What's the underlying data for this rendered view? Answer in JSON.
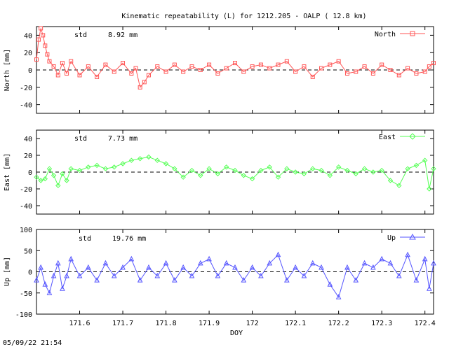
{
  "title": "Kinematic repeatability (L) for 1212.205 - OALP  ( 12.8 km)",
  "timestamp": "05/09/22 21:54",
  "colors": {
    "north": "#ff5555",
    "east": "#55ff55",
    "up": "#5555ff",
    "axis": "#000000"
  },
  "chart_data": [
    {
      "type": "line",
      "panel": "north",
      "ylabel": "North [mm]",
      "legend": "North",
      "legend_placement": "top-right",
      "std_label": "std",
      "std_value": "8.92 mm",
      "marker": "square",
      "ylim": [
        -50,
        50
      ],
      "yticks": [
        -40,
        -20,
        0,
        20,
        40
      ],
      "xlim": [
        171.5,
        172.42
      ],
      "grid": false,
      "zero_line": true,
      "series": [
        {
          "x": [
            171.5,
            171.505,
            171.51,
            171.515,
            171.52,
            171.525,
            171.53,
            171.54,
            171.55,
            171.56,
            171.57,
            171.58,
            171.6,
            171.62,
            171.64,
            171.66,
            171.68,
            171.7,
            171.72,
            171.73,
            171.74,
            171.75,
            171.76,
            171.78,
            171.8,
            171.82,
            171.84,
            171.86,
            171.88,
            171.9,
            171.92,
            171.94,
            171.96,
            171.98,
            172.0,
            172.02,
            172.04,
            172.06,
            172.08,
            172.1,
            172.12,
            172.14,
            172.16,
            172.18,
            172.2,
            172.22,
            172.24,
            172.26,
            172.28,
            172.3,
            172.32,
            172.34,
            172.36,
            172.38,
            172.4,
            172.41,
            172.42
          ],
          "y": [
            12,
            35,
            48,
            40,
            28,
            18,
            10,
            4,
            -6,
            8,
            -4,
            10,
            -6,
            4,
            -8,
            6,
            -2,
            8,
            -4,
            2,
            -20,
            -14,
            -6,
            4,
            -2,
            6,
            -2,
            4,
            0,
            6,
            -4,
            2,
            8,
            -2,
            4,
            6,
            2,
            6,
            10,
            -2,
            4,
            -8,
            2,
            6,
            10,
            -4,
            -2,
            4,
            -4,
            6,
            0,
            -6,
            2,
            -4,
            -2,
            4,
            8
          ]
        }
      ]
    },
    {
      "type": "line",
      "panel": "east",
      "ylabel": "East [mm]",
      "legend": "East",
      "legend_placement": "top-right",
      "std_label": "std",
      "std_value": "7.73 mm",
      "marker": "diamond",
      "ylim": [
        -50,
        50
      ],
      "yticks": [
        -40,
        -20,
        0,
        20,
        40
      ],
      "xlim": [
        171.5,
        172.42
      ],
      "grid": false,
      "zero_line": true,
      "series": [
        {
          "x": [
            171.5,
            171.51,
            171.52,
            171.53,
            171.54,
            171.55,
            171.56,
            171.57,
            171.58,
            171.6,
            171.62,
            171.64,
            171.66,
            171.68,
            171.7,
            171.72,
            171.74,
            171.76,
            171.78,
            171.8,
            171.82,
            171.84,
            171.86,
            171.88,
            171.9,
            171.92,
            171.94,
            171.96,
            171.98,
            172.0,
            172.02,
            172.04,
            172.06,
            172.08,
            172.1,
            172.12,
            172.14,
            172.16,
            172.18,
            172.2,
            172.22,
            172.24,
            172.26,
            172.28,
            172.3,
            172.32,
            172.34,
            172.36,
            172.38,
            172.4,
            172.41,
            172.42
          ],
          "y": [
            -6,
            -10,
            -8,
            4,
            -4,
            -16,
            -2,
            -10,
            4,
            2,
            6,
            8,
            4,
            6,
            10,
            14,
            16,
            18,
            14,
            10,
            4,
            -6,
            2,
            -4,
            4,
            -2,
            6,
            2,
            -4,
            -8,
            2,
            6,
            -6,
            4,
            0,
            -2,
            4,
            2,
            -4,
            6,
            2,
            -2,
            4,
            0,
            2,
            -10,
            -16,
            4,
            8,
            14,
            -20,
            4
          ]
        }
      ]
    },
    {
      "type": "line",
      "panel": "up",
      "ylabel": "Up [mm]",
      "legend": "Up",
      "legend_placement": "top-right",
      "std_label": "std",
      "std_value": "19.76 mm",
      "marker": "triangle",
      "ylim": [
        -100,
        100
      ],
      "yticks": [
        -100,
        -50,
        0,
        50,
        100
      ],
      "xlim": [
        171.5,
        172.42
      ],
      "xticks": [
        171.6,
        171.7,
        171.8,
        171.9,
        172.0,
        172.1,
        172.2,
        172.3,
        172.4
      ],
      "xticklabels": [
        "171.6",
        "171.7",
        "171.8",
        "171.9",
        "172",
        "172.1",
        "172.2",
        "172.3",
        "172.4"
      ],
      "xlabel": "DOY",
      "grid": false,
      "zero_line": true,
      "series": [
        {
          "x": [
            171.5,
            171.51,
            171.52,
            171.53,
            171.54,
            171.55,
            171.56,
            171.57,
            171.58,
            171.6,
            171.62,
            171.64,
            171.66,
            171.68,
            171.7,
            171.72,
            171.74,
            171.76,
            171.78,
            171.8,
            171.82,
            171.84,
            171.86,
            171.88,
            171.9,
            171.92,
            171.94,
            171.96,
            171.98,
            172.0,
            172.02,
            172.04,
            172.06,
            172.08,
            172.1,
            172.12,
            172.14,
            172.16,
            172.18,
            172.2,
            172.22,
            172.24,
            172.26,
            172.28,
            172.3,
            172.32,
            172.34,
            172.36,
            172.38,
            172.4,
            172.41,
            172.42
          ],
          "y": [
            -20,
            10,
            -30,
            -50,
            -10,
            20,
            -40,
            -10,
            30,
            -10,
            10,
            -20,
            20,
            -10,
            10,
            30,
            -20,
            10,
            -10,
            20,
            -20,
            10,
            -10,
            20,
            30,
            -10,
            20,
            10,
            -20,
            10,
            -10,
            20,
            40,
            -20,
            10,
            -10,
            20,
            10,
            -30,
            -60,
            10,
            -20,
            20,
            10,
            30,
            20,
            -10,
            40,
            -20,
            30,
            -40,
            20
          ]
        }
      ]
    }
  ]
}
